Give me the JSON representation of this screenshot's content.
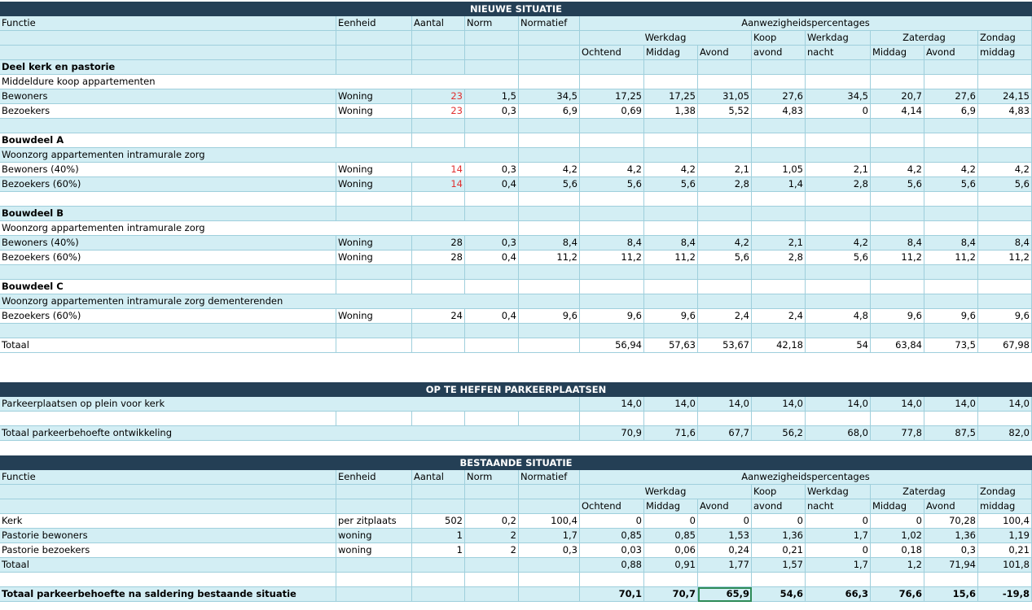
{
  "nieuwe": {
    "title": "NIEUWE SITUATIE",
    "headers": {
      "functie": "Functie",
      "eenheid": "Eenheid",
      "aantal": "Aantal",
      "norm": "Norm",
      "normatief": "Normatief",
      "aanw": "Aanwezigheidspercentages"
    },
    "sub1": {
      "werkdag": "Werkdag",
      "koop": "Koop",
      "werkdag2": "Werkdag",
      "zaterdag": "Zaterdag",
      "zondag": "Zondag"
    },
    "sub2": [
      "Ochtend",
      "Middag",
      "Avond",
      "avond",
      "nacht",
      "Middag",
      "Avond",
      "middag"
    ],
    "rows": [
      {
        "type": "bold",
        "label": "Deel kerk en pastorie"
      },
      {
        "type": "text",
        "label": "Middeldure koop appartementen"
      },
      {
        "type": "data",
        "label": "Bewoners",
        "eenheid": "Woning",
        "aantal": "23",
        "red": true,
        "norm": "1,5",
        "normatief": "34,5",
        "v": [
          "17,25",
          "17,25",
          "31,05",
          "27,6",
          "34,5",
          "20,7",
          "27,6",
          "24,15"
        ]
      },
      {
        "type": "data",
        "label": "Bezoekers",
        "eenheid": "Woning",
        "aantal": "23",
        "red": true,
        "norm": "0,3",
        "normatief": "6,9",
        "v": [
          "0,69",
          "1,38",
          "5,52",
          "4,83",
          "0",
          "4,14",
          "6,9",
          "4,83"
        ]
      },
      {
        "type": "empty"
      },
      {
        "type": "bold",
        "label": "Bouwdeel A"
      },
      {
        "type": "text",
        "label": "Woonzorg appartementen intramurale zorg"
      },
      {
        "type": "data",
        "label": "Bewoners (40%)",
        "eenheid": "Woning",
        "aantal": "14",
        "red": true,
        "norm": "0,3",
        "normatief": "4,2",
        "v": [
          "4,2",
          "4,2",
          "2,1",
          "1,05",
          "2,1",
          "4,2",
          "4,2",
          "4,2"
        ]
      },
      {
        "type": "data",
        "label": "Bezoekers (60%)",
        "eenheid": "Woning",
        "aantal": "14",
        "red": true,
        "norm": "0,4",
        "normatief": "5,6",
        "v": [
          "5,6",
          "5,6",
          "2,8",
          "1,4",
          "2,8",
          "5,6",
          "5,6",
          "5,6"
        ]
      },
      {
        "type": "empty"
      },
      {
        "type": "bold",
        "label": "Bouwdeel B"
      },
      {
        "type": "text",
        "label": "Woonzorg appartementen intramurale zorg"
      },
      {
        "type": "data",
        "label": "Bewoners (40%)",
        "eenheid": "Woning",
        "aantal": "28",
        "red": false,
        "norm": "0,3",
        "normatief": "8,4",
        "v": [
          "8,4",
          "8,4",
          "4,2",
          "2,1",
          "4,2",
          "8,4",
          "8,4",
          "8,4"
        ]
      },
      {
        "type": "data",
        "label": "Bezoekers (60%)",
        "eenheid": "Woning",
        "aantal": "28",
        "red": false,
        "norm": "0,4",
        "normatief": "11,2",
        "v": [
          "11,2",
          "11,2",
          "5,6",
          "2,8",
          "5,6",
          "11,2",
          "11,2",
          "11,2"
        ]
      },
      {
        "type": "empty"
      },
      {
        "type": "bold",
        "label": "Bouwdeel C"
      },
      {
        "type": "text",
        "label": "Woonzorg appartementen intramurale zorg dementerenden"
      },
      {
        "type": "data",
        "label": "Bezoekers (60%)",
        "eenheid": "Woning",
        "aantal": "24",
        "red": false,
        "norm": "0,4",
        "normatief": "9,6",
        "v": [
          "9,6",
          "9,6",
          "2,4",
          "2,4",
          "4,8",
          "9,6",
          "9,6",
          "9,6"
        ]
      },
      {
        "type": "empty"
      },
      {
        "type": "total",
        "label": "Totaal",
        "v": [
          "56,94",
          "57,63",
          "53,67",
          "42,18",
          "54",
          "63,84",
          "73,5",
          "67,98"
        ]
      }
    ]
  },
  "op_te_heffen": {
    "title": "OP TE HEFFEN PARKEERPLAATSEN",
    "row": {
      "label": "Parkeerplaatsen op plein voor kerk",
      "v": [
        "14,0",
        "14,0",
        "14,0",
        "14,0",
        "14,0",
        "14,0",
        "14,0",
        "14,0"
      ]
    },
    "totaal": {
      "label": "Totaal parkeerbehoefte ontwikkeling",
      "v": [
        "70,9",
        "71,6",
        "67,7",
        "56,2",
        "68,0",
        "77,8",
        "87,5",
        "82,0"
      ]
    }
  },
  "bestaande": {
    "title": "BESTAANDE SITUATIE",
    "rows": [
      {
        "label": "Kerk",
        "eenheid": "per zitplaats",
        "aantal": "502",
        "norm": "0,2",
        "normatief": "100,4",
        "v": [
          "0",
          "0",
          "0",
          "0",
          "0",
          "0",
          "70,28",
          "100,4"
        ]
      },
      {
        "label": "Pastorie bewoners",
        "eenheid": "woning",
        "aantal": "1",
        "norm": "2",
        "normatief": "1,7",
        "v": [
          "0,85",
          "0,85",
          "1,53",
          "1,36",
          "1,7",
          "1,02",
          "1,36",
          "1,19"
        ]
      },
      {
        "label": "Pastorie bezoekers",
        "eenheid": "woning",
        "aantal": "1",
        "norm": "2",
        "normatief": "0,3",
        "v": [
          "0,03",
          "0,06",
          "0,24",
          "0,21",
          "0",
          "0,18",
          "0,3",
          "0,21"
        ]
      }
    ],
    "totaal": {
      "label": "Totaal",
      "v": [
        "0,88",
        "0,91",
        "1,77",
        "1,57",
        "1,7",
        "1,2",
        "71,94",
        "101,8"
      ]
    },
    "saldo": {
      "label": "Totaal parkeerbehoefte na saldering bestaande situatie",
      "v": [
        "70,1",
        "70,7",
        "65,9",
        "54,6",
        "66,3",
        "76,6",
        "15,6",
        "-19,8"
      ]
    }
  }
}
